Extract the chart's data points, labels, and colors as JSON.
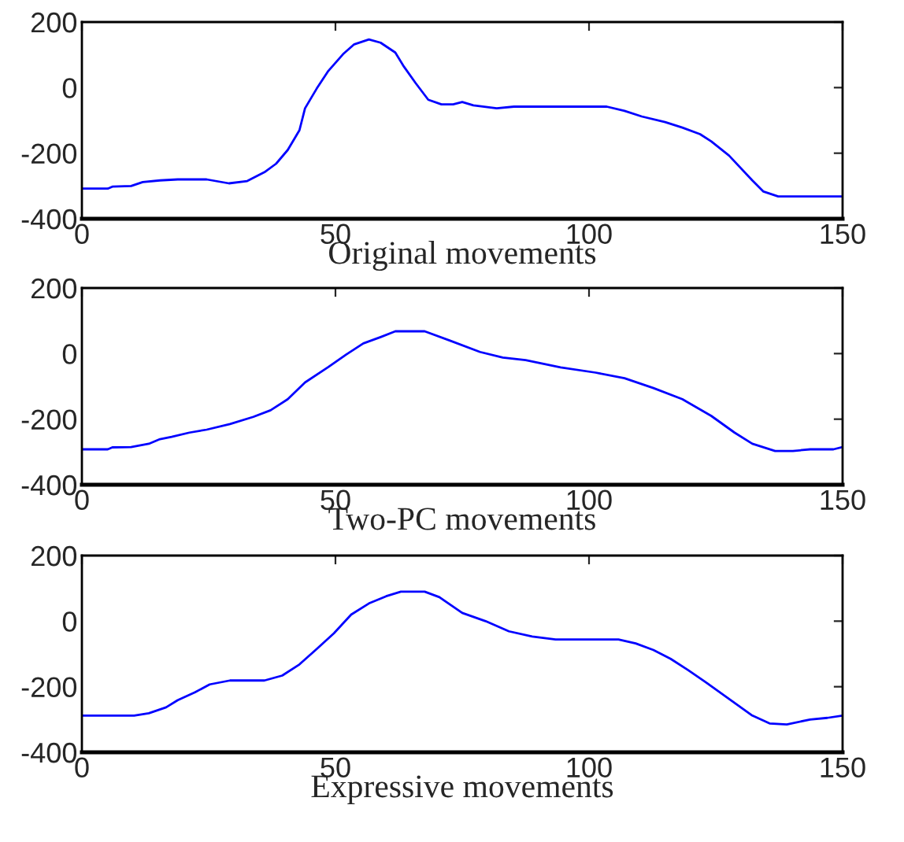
{
  "chart_data": [
    {
      "type": "line",
      "xlabel": "Original movements",
      "xlim": [
        0,
        150
      ],
      "xticks": [
        0,
        50,
        100,
        150
      ],
      "ylim": [
        -400,
        200
      ],
      "yticks": [
        -400,
        -200,
        0,
        200
      ],
      "grid": false,
      "legend": false,
      "series": [
        {
          "color": "#0000ff",
          "x": [
            0,
            5.1,
            6,
            9.7,
            12,
            15.4,
            18.9,
            24.6,
            29,
            32.6,
            36,
            38.3,
            40.6,
            42.9,
            44,
            46.3,
            48.6,
            51.5,
            53.7,
            56.6,
            58.9,
            61.8,
            63.5,
            65.8,
            68.3,
            70.9,
            73.2,
            75,
            77.2,
            81.8,
            85.2,
            103.5,
            107,
            110.4,
            115,
            118.4,
            121.9,
            124.1,
            127.6,
            132.2,
            134.4,
            137.3,
            150
          ],
          "values": [
            -308,
            -308,
            -302,
            -300,
            -288,
            -283,
            -280,
            -280,
            -292,
            -285,
            -258,
            -232,
            -190,
            -130,
            -63,
            -3,
            51,
            102,
            132,
            147,
            137,
            107,
            64,
            14,
            -37,
            -51,
            -51,
            -44,
            -54,
            -63,
            -58,
            -58,
            -71,
            -88,
            -105,
            -122,
            -142,
            -164,
            -207,
            -283,
            -317,
            -332,
            -332
          ]
        }
      ]
    },
    {
      "type": "line",
      "xlabel": "Two-PC movements",
      "xlim": [
        0,
        150
      ],
      "xticks": [
        0,
        50,
        100,
        150
      ],
      "ylim": [
        -400,
        200
      ],
      "yticks": [
        -400,
        -200,
        0,
        200
      ],
      "grid": false,
      "legend": false,
      "series": [
        {
          "color": "#0000ff",
          "x": [
            0,
            5.1,
            6,
            9.7,
            13.2,
            15.4,
            17.7,
            21.2,
            24.6,
            29.2,
            33.8,
            37.2,
            40.6,
            44,
            48.6,
            52.1,
            55.5,
            59,
            61.8,
            67.6,
            72.7,
            78.5,
            83,
            87.5,
            94.4,
            101.3,
            107,
            112.7,
            118.4,
            124.1,
            128.7,
            132.2,
            136.7,
            140.2,
            143.6,
            148.2,
            150
          ],
          "values": [
            -292,
            -292,
            -286,
            -285,
            -275,
            -261,
            -254,
            -241,
            -232,
            -215,
            -193,
            -173,
            -139,
            -88,
            -41,
            -3,
            31,
            51,
            68,
            68,
            39,
            5,
            -12,
            -20,
            -42,
            -58,
            -75,
            -105,
            -139,
            -190,
            -241,
            -275,
            -297,
            -297,
            -292,
            -292,
            -285
          ]
        }
      ]
    },
    {
      "type": "line",
      "xlabel": "Expressive movements",
      "xlim": [
        0,
        150
      ],
      "xticks": [
        0,
        50,
        100,
        150
      ],
      "ylim": [
        -400,
        200
      ],
      "yticks": [
        -400,
        -200,
        0,
        200
      ],
      "grid": false,
      "legend": false,
      "series": [
        {
          "color": "#0000ff",
          "x": [
            0,
            10.3,
            13.2,
            16.6,
            18.9,
            22.3,
            25.2,
            29.2,
            36,
            39.5,
            42.9,
            46.3,
            49.7,
            53.1,
            56.6,
            60,
            62.9,
            67.6,
            70.5,
            75,
            79.6,
            84.2,
            88.8,
            93.4,
            105.8,
            109.2,
            112.7,
            116.1,
            119.5,
            123,
            127.6,
            132.2,
            135.6,
            139,
            143.6,
            147,
            150
          ],
          "values": [
            -288,
            -288,
            -281,
            -263,
            -241,
            -217,
            -193,
            -181,
            -181,
            -166,
            -132,
            -85,
            -37,
            20,
            54,
            76,
            90,
            90,
            73,
            25,
            0,
            -31,
            -47,
            -56,
            -56,
            -68,
            -88,
            -115,
            -149,
            -186,
            -237,
            -288,
            -312,
            -315,
            -300,
            -295,
            -288
          ]
        }
      ]
    }
  ]
}
